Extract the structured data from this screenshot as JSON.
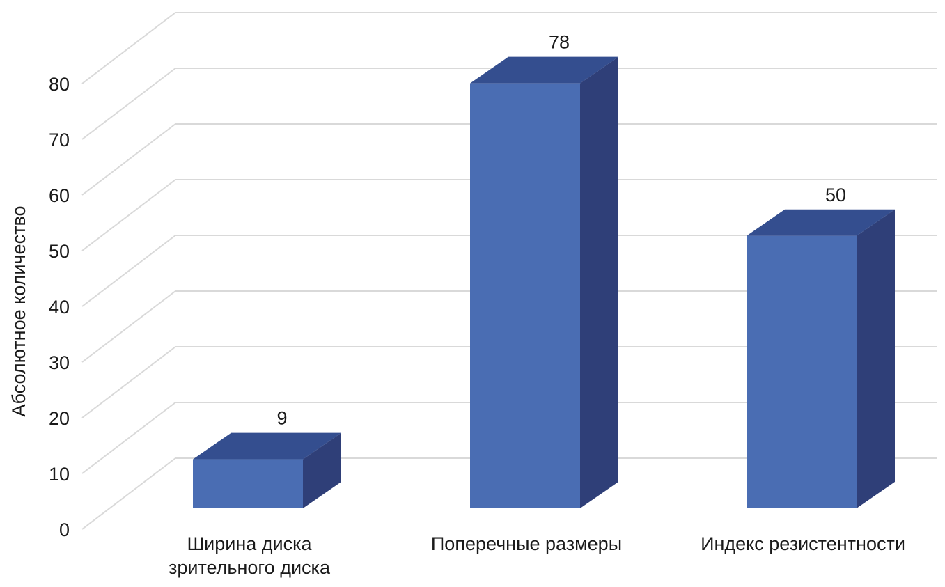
{
  "chart_data": {
    "type": "bar",
    "style": "3d-column",
    "categories": [
      [
        "Ширина диска",
        "зрительного диска"
      ],
      [
        "Поперечные размеры"
      ],
      [
        "Индекс резистентности"
      ]
    ],
    "values": [
      9,
      78,
      50
    ],
    "title": "",
    "xlabel": "",
    "ylabel": "Абсолютное количество",
    "ylim": [
      0,
      80
    ],
    "yticks": [
      0,
      10,
      20,
      30,
      40,
      50,
      60,
      70,
      80
    ],
    "grid": true,
    "legend": "none",
    "colors": {
      "front": "#4a6db3",
      "top": "#344e8f",
      "side": "#2f3f78",
      "grid": "#d9d9d9"
    }
  }
}
